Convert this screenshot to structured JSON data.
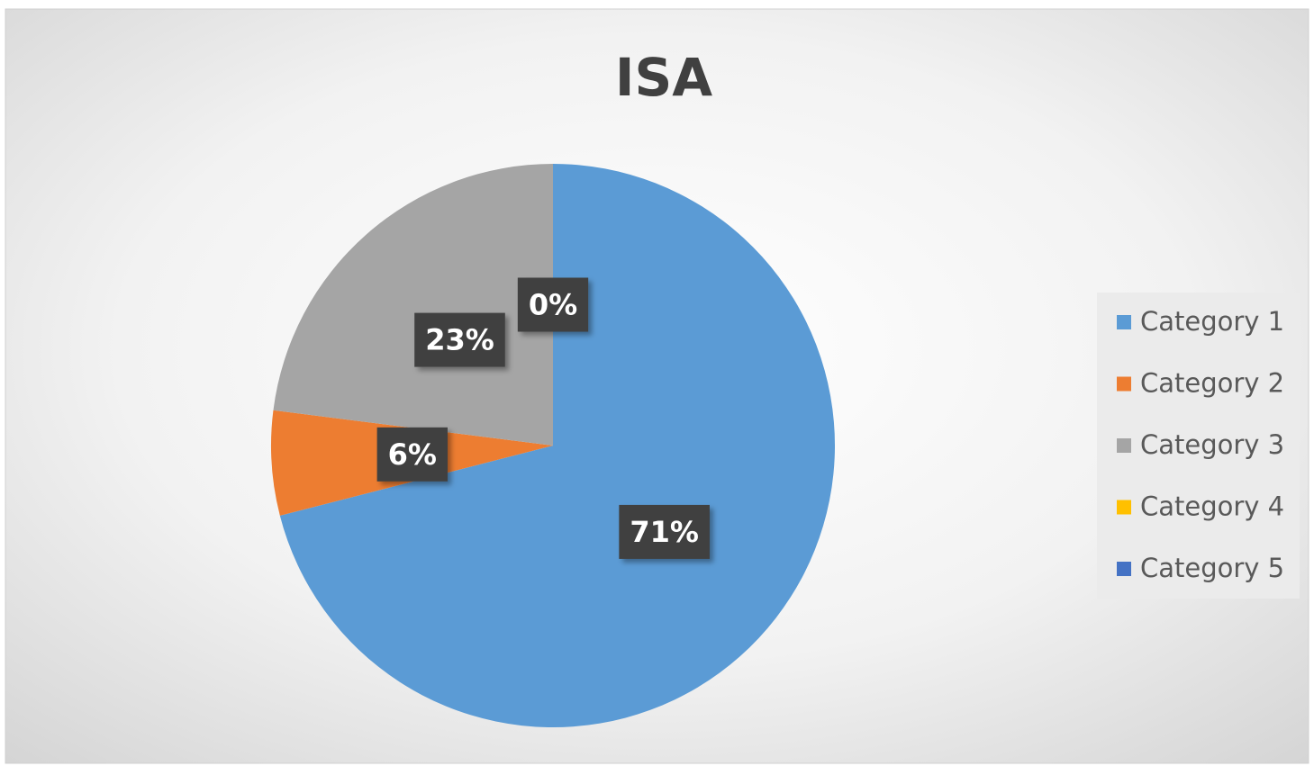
{
  "chart_data": {
    "type": "pie",
    "title": "ISA",
    "categories": [
      "Category 1",
      "Category 2",
      "Category 3",
      "Category 4",
      "Category 5"
    ],
    "values": [
      71,
      6,
      23,
      0,
      0
    ],
    "value_labels": [
      "71%",
      "6%",
      "23%",
      "0%",
      null
    ],
    "colors": [
      "#5b9bd5",
      "#ed7d31",
      "#a5a5a5",
      "#ffc000",
      "#4472c4"
    ],
    "legend": "right"
  }
}
